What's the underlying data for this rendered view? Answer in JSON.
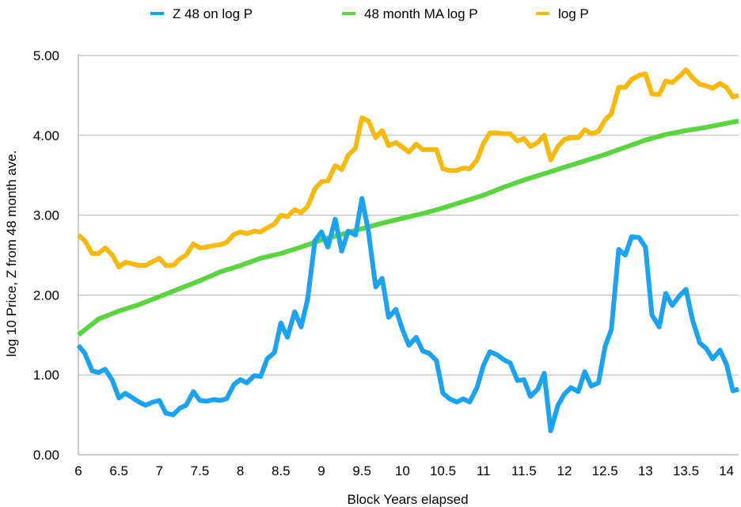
{
  "chart_data": {
    "type": "line",
    "xlabel": "Block Years elapsed",
    "ylabel": "log 10 Price, Z from 48 month ave.",
    "xlim": [
      6,
      14.15
    ],
    "ylim": [
      0,
      5
    ],
    "x_ticks": [
      6,
      6.5,
      7,
      7.5,
      8,
      8.5,
      9,
      9.5,
      10,
      10.5,
      11,
      11.5,
      12,
      12.5,
      13,
      13.5,
      14
    ],
    "x_tick_labels": [
      "6",
      "6.5",
      "7",
      "7.5",
      "8",
      "8.5",
      "9",
      "9.5",
      "10",
      "10.5",
      "11",
      "11.5",
      "12",
      "12.5",
      "13",
      "13.5",
      "14"
    ],
    "y_ticks": [
      0,
      1,
      2,
      3,
      4,
      5
    ],
    "y_tick_labels": [
      "0.00",
      "1.00",
      "2.00",
      "3.00",
      "4.00",
      "5.00"
    ],
    "grid": "horizontal",
    "legend_position": "top",
    "series": [
      {
        "name": "Z 48 on log P",
        "color": "#1aa3f2",
        "x": [
          6.0,
          6.08,
          6.17,
          6.25,
          6.33,
          6.42,
          6.5,
          6.58,
          6.67,
          6.75,
          6.83,
          6.92,
          7.0,
          7.08,
          7.17,
          7.25,
          7.33,
          7.42,
          7.5,
          7.58,
          7.67,
          7.75,
          7.83,
          7.92,
          8.0,
          8.08,
          8.17,
          8.25,
          8.33,
          8.42,
          8.5,
          8.58,
          8.67,
          8.75,
          8.83,
          8.92,
          9.0,
          9.08,
          9.17,
          9.25,
          9.33,
          9.42,
          9.5,
          9.58,
          9.67,
          9.75,
          9.83,
          9.92,
          10.0,
          10.08,
          10.17,
          10.25,
          10.33,
          10.42,
          10.5,
          10.58,
          10.67,
          10.75,
          10.83,
          10.92,
          11.0,
          11.08,
          11.17,
          11.25,
          11.33,
          11.42,
          11.5,
          11.58,
          11.67,
          11.75,
          11.83,
          11.92,
          12.0,
          12.08,
          12.17,
          12.25,
          12.33,
          12.42,
          12.5,
          12.58,
          12.67,
          12.75,
          12.83,
          12.92,
          13.0,
          13.08,
          13.17,
          13.25,
          13.33,
          13.42,
          13.5,
          13.58,
          13.67,
          13.75,
          13.83,
          13.92,
          14.0,
          14.08,
          14.15
        ],
        "values": [
          1.37,
          1.27,
          1.05,
          1.03,
          1.07,
          0.93,
          0.71,
          0.77,
          0.71,
          0.66,
          0.62,
          0.66,
          0.68,
          0.52,
          0.5,
          0.58,
          0.62,
          0.79,
          0.68,
          0.67,
          0.69,
          0.68,
          0.7,
          0.88,
          0.94,
          0.9,
          0.99,
          0.98,
          1.2,
          1.28,
          1.65,
          1.47,
          1.79,
          1.6,
          1.95,
          2.68,
          2.79,
          2.6,
          2.95,
          2.55,
          2.8,
          2.75,
          3.21,
          2.8,
          2.1,
          2.21,
          1.72,
          1.82,
          1.57,
          1.37,
          1.47,
          1.3,
          1.27,
          1.18,
          0.77,
          0.7,
          0.66,
          0.7,
          0.66,
          0.84,
          1.12,
          1.29,
          1.25,
          1.19,
          1.15,
          0.93,
          0.94,
          0.73,
          0.82,
          1.02,
          0.3,
          0.62,
          0.76,
          0.84,
          0.79,
          1.04,
          0.86,
          0.9,
          1.35,
          1.57,
          2.57,
          2.5,
          2.73,
          2.72,
          2.6,
          1.75,
          1.6,
          2.02,
          1.87,
          1.99,
          2.07,
          1.69,
          1.4,
          1.33,
          1.2,
          1.31,
          1.13,
          0.8,
          0.82
        ]
      },
      {
        "name": "48 month MA log P",
        "color": "#5ad43f",
        "x": [
          6.0,
          6.25,
          6.5,
          6.75,
          7.0,
          7.25,
          7.5,
          7.75,
          8.0,
          8.25,
          8.5,
          8.75,
          9.0,
          9.25,
          9.5,
          9.75,
          10.0,
          10.25,
          10.5,
          10.75,
          11.0,
          11.25,
          11.5,
          11.75,
          12.0,
          12.25,
          12.5,
          12.75,
          13.0,
          13.25,
          13.5,
          13.75,
          14.0,
          14.15
        ],
        "values": [
          1.5,
          1.7,
          1.8,
          1.88,
          1.98,
          2.08,
          2.18,
          2.29,
          2.37,
          2.46,
          2.52,
          2.6,
          2.69,
          2.76,
          2.83,
          2.9,
          2.96,
          3.02,
          3.09,
          3.17,
          3.25,
          3.35,
          3.44,
          3.52,
          3.6,
          3.68,
          3.76,
          3.85,
          3.94,
          4.01,
          4.06,
          4.1,
          4.15,
          4.18
        ]
      },
      {
        "name": "log P",
        "color": "#f7b90c",
        "x": [
          6.0,
          6.08,
          6.17,
          6.25,
          6.33,
          6.42,
          6.5,
          6.58,
          6.67,
          6.75,
          6.83,
          6.92,
          7.0,
          7.08,
          7.17,
          7.25,
          7.33,
          7.42,
          7.5,
          7.58,
          7.67,
          7.75,
          7.83,
          7.92,
          8.0,
          8.08,
          8.17,
          8.25,
          8.33,
          8.42,
          8.5,
          8.58,
          8.67,
          8.75,
          8.83,
          8.92,
          9.0,
          9.08,
          9.17,
          9.25,
          9.33,
          9.42,
          9.5,
          9.58,
          9.67,
          9.75,
          9.83,
          9.92,
          10.0,
          10.08,
          10.17,
          10.25,
          10.33,
          10.42,
          10.5,
          10.58,
          10.67,
          10.75,
          10.83,
          10.92,
          11.0,
          11.08,
          11.17,
          11.25,
          11.33,
          11.42,
          11.5,
          11.58,
          11.67,
          11.75,
          11.83,
          11.92,
          12.0,
          12.08,
          12.17,
          12.25,
          12.33,
          12.42,
          12.5,
          12.58,
          12.67,
          12.75,
          12.83,
          12.92,
          13.0,
          13.08,
          13.17,
          13.25,
          13.33,
          13.42,
          13.5,
          13.58,
          13.67,
          13.75,
          13.83,
          13.92,
          14.0,
          14.08,
          14.15
        ],
        "values": [
          2.75,
          2.68,
          2.52,
          2.52,
          2.59,
          2.5,
          2.35,
          2.41,
          2.39,
          2.37,
          2.37,
          2.42,
          2.46,
          2.37,
          2.37,
          2.45,
          2.5,
          2.64,
          2.59,
          2.6,
          2.62,
          2.63,
          2.66,
          2.76,
          2.79,
          2.77,
          2.8,
          2.79,
          2.84,
          2.89,
          3.0,
          2.98,
          3.07,
          3.03,
          3.11,
          3.33,
          3.42,
          3.43,
          3.62,
          3.57,
          3.75,
          3.84,
          4.22,
          4.18,
          3.97,
          4.06,
          3.87,
          3.91,
          3.85,
          3.79,
          3.89,
          3.82,
          3.82,
          3.82,
          3.58,
          3.56,
          3.56,
          3.59,
          3.58,
          3.69,
          3.9,
          4.03,
          4.03,
          4.02,
          4.02,
          3.93,
          3.96,
          3.86,
          3.91,
          4.0,
          3.69,
          3.86,
          3.95,
          3.97,
          3.97,
          4.07,
          4.02,
          4.05,
          4.19,
          4.27,
          4.6,
          4.6,
          4.7,
          4.75,
          4.77,
          4.52,
          4.51,
          4.68,
          4.66,
          4.74,
          4.82,
          4.72,
          4.64,
          4.62,
          4.59,
          4.65,
          4.6,
          4.48,
          4.5
        ]
      }
    ]
  }
}
